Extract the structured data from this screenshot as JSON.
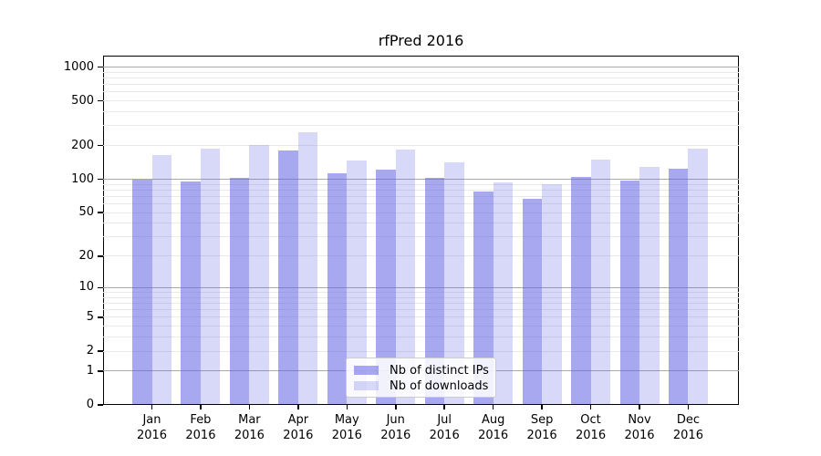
{
  "title": "rfPred 2016",
  "legend": {
    "items": [
      {
        "label": "Nb of distinct IPs",
        "color": "rgba(100,100,230,0.56)"
      },
      {
        "label": "Nb of downloads",
        "color": "rgba(100,100,230,0.25)"
      }
    ]
  },
  "chart_data": {
    "type": "bar",
    "title": "rfPred 2016",
    "categories": [
      "Jan 2016",
      "Feb 2016",
      "Mar 2016",
      "Apr 2016",
      "May 2016",
      "Jun 2016",
      "Jul 2016",
      "Aug 2016",
      "Sep 2016",
      "Oct 2016",
      "Nov 2016",
      "Dec 2016"
    ],
    "series": [
      {
        "name": "Nb of distinct IPs",
        "color": "rgba(100,100,230,0.56)",
        "values": [
          100,
          95,
          102,
          181,
          113,
          121,
          103,
          77,
          67,
          105,
          97,
          124
        ]
      },
      {
        "name": "Nb of downloads",
        "color": "rgba(100,100,230,0.25)",
        "values": [
          165,
          188,
          202,
          264,
          148,
          184,
          141,
          94,
          90,
          150,
          129,
          189
        ]
      }
    ],
    "xlabel": "",
    "ylabel": "",
    "y_axis": {
      "scale": "log10(1+v)",
      "tick_values": [
        1000,
        500,
        200,
        100,
        50,
        20,
        10,
        5,
        2,
        1,
        0
      ],
      "tick_labels": [
        "1000",
        "500",
        "200",
        "100",
        "50",
        "20",
        "10",
        "5",
        "2",
        "1",
        "0"
      ],
      "ylim": [
        0,
        1264
      ]
    },
    "grid": {
      "major_lines": [
        1,
        10,
        100,
        1000
      ],
      "major_color": "#a9a9a9",
      "minor_color": "#e9e9e9"
    },
    "legend_position": "lower center",
    "colors": {
      "background": "#ffffff",
      "axis": "#000000",
      "text": "#000000"
    }
  }
}
